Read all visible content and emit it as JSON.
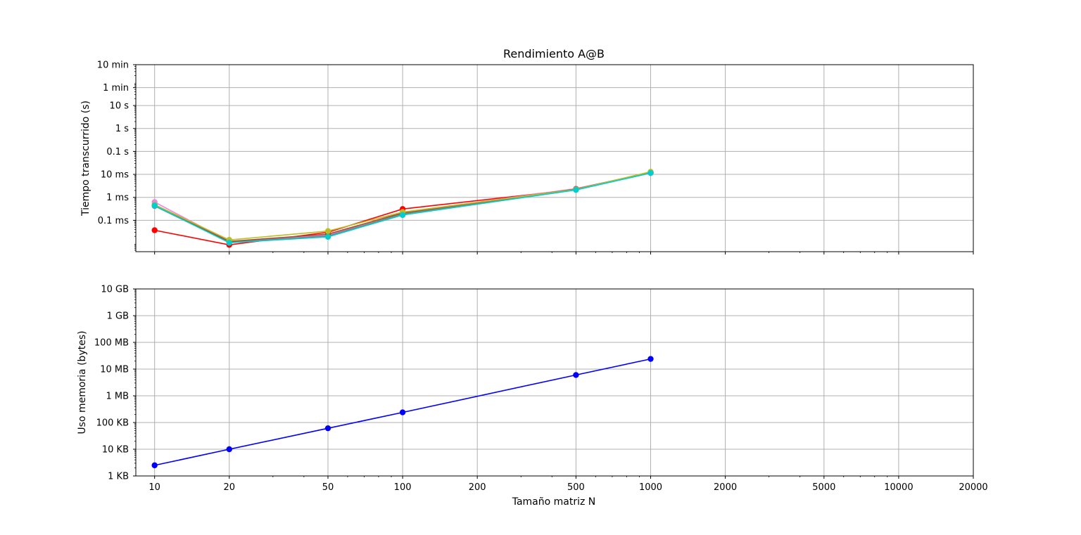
{
  "chart_data": [
    {
      "type": "line",
      "title": "Rendimiento A@B",
      "xlabel": "",
      "ylabel": "Tiempo transcurrido (s)",
      "xscale": "log",
      "yscale": "log",
      "xlim": [
        8.4,
        20000
      ],
      "ylim": [
        4.3e-06,
        600
      ],
      "grid": true,
      "marker": "circle",
      "x": [
        10,
        20,
        50,
        100,
        500,
        1000
      ],
      "yticks": [
        {
          "value": 0.0001,
          "label": "0.1 ms"
        },
        {
          "value": 0.001,
          "label": "1 ms"
        },
        {
          "value": 0.01,
          "label": "10 ms"
        },
        {
          "value": 0.1,
          "label": "0.1 s"
        },
        {
          "value": 1,
          "label": "1 s"
        },
        {
          "value": 10,
          "label": "10 s"
        },
        {
          "value": 60,
          "label": "1 min"
        },
        {
          "value": 600,
          "label": "10 min"
        }
      ],
      "series": [
        {
          "color": "#ff0000",
          "values": [
            3.7e-05,
            8.5e-06,
            3e-05,
            0.00031,
            0.0022,
            0.0115
          ]
        },
        {
          "color": "#ee82ee",
          "values": [
            0.00062,
            1.2e-05,
            2.3e-05,
            0.00022,
            0.0024,
            0.012
          ]
        },
        {
          "color": "#808080",
          "values": [
            0.00042,
            1.1e-05,
            2.1e-05,
            0.00019,
            0.0022,
            0.0118
          ]
        },
        {
          "color": "#a0522d",
          "values": [
            0.00045,
            1.2e-05,
            2.5e-05,
            0.00021,
            0.0023,
            0.0125
          ]
        },
        {
          "color": "#bcbd22",
          "values": [
            0.00048,
            1.4e-05,
            3.4e-05,
            0.00023,
            0.0022,
            0.013
          ]
        },
        {
          "color": "#00ced1",
          "values": [
            0.00044,
            1.05e-05,
            1.9e-05,
            0.00017,
            0.0021,
            0.0115
          ]
        }
      ]
    },
    {
      "type": "line",
      "title": "",
      "xlabel": "Tamaño matriz N",
      "ylabel": "Uso memoria (bytes)",
      "xscale": "log",
      "yscale": "log",
      "xlim": [
        8.4,
        20000
      ],
      "ylim": [
        1000,
        10000000000
      ],
      "grid": true,
      "marker": "circle",
      "x": [
        10,
        20,
        50,
        100,
        500,
        1000
      ],
      "xticks": [
        {
          "value": 10,
          "label": "10"
        },
        {
          "value": 20,
          "label": "20"
        },
        {
          "value": 50,
          "label": "50"
        },
        {
          "value": 100,
          "label": "100"
        },
        {
          "value": 200,
          "label": "200"
        },
        {
          "value": 500,
          "label": "500"
        },
        {
          "value": 1000,
          "label": "1000"
        },
        {
          "value": 2000,
          "label": "2000"
        },
        {
          "value": 5000,
          "label": "5000"
        },
        {
          "value": 10000,
          "label": "10000"
        },
        {
          "value": 20000,
          "label": "20000"
        }
      ],
      "yticks": [
        {
          "value": 1000,
          "label": "1 KB"
        },
        {
          "value": 10000,
          "label": "10 KB"
        },
        {
          "value": 100000,
          "label": "100 KB"
        },
        {
          "value": 1000000,
          "label": "1 MB"
        },
        {
          "value": 10000000,
          "label": "10 MB"
        },
        {
          "value": 100000000,
          "label": "100 MB"
        },
        {
          "value": 1000000000,
          "label": "1 GB"
        },
        {
          "value": 10000000000,
          "label": "10 GB"
        }
      ],
      "series": [
        {
          "color": "#0000ff",
          "values": [
            2500,
            10000,
            61000,
            240000,
            6000000,
            24000000
          ]
        }
      ]
    }
  ]
}
